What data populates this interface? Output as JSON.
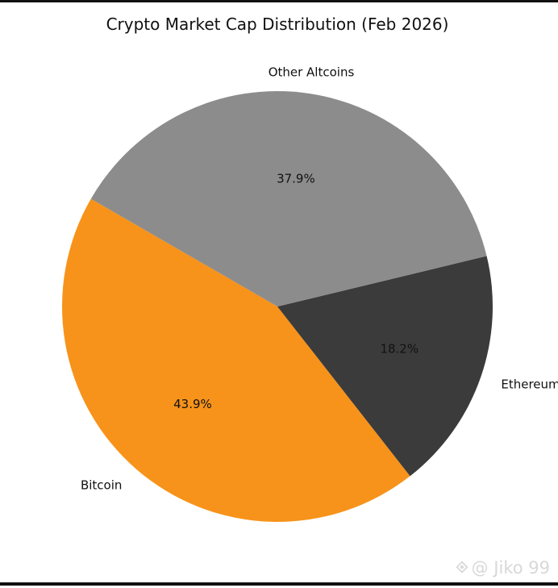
{
  "chart_data": {
    "type": "pie",
    "title": "Crypto Market Cap Distribution (Feb 2026)",
    "slices": [
      {
        "label": "Bitcoin",
        "value": 43.9,
        "value_label": "43.9%",
        "color": "#f7931a"
      },
      {
        "label": "Ethereum",
        "value": 18.2,
        "value_label": "18.2%",
        "color": "#3b3b3b"
      },
      {
        "label": "Other Altcoins",
        "value": 37.9,
        "value_label": "37.9%",
        "color": "#8c8c8c"
      }
    ],
    "start_angle_deg": 150,
    "direction": "counterclockwise",
    "legend": "none"
  },
  "watermark": {
    "text": "@ Jiko 99",
    "icon": "binance-square-icon"
  }
}
